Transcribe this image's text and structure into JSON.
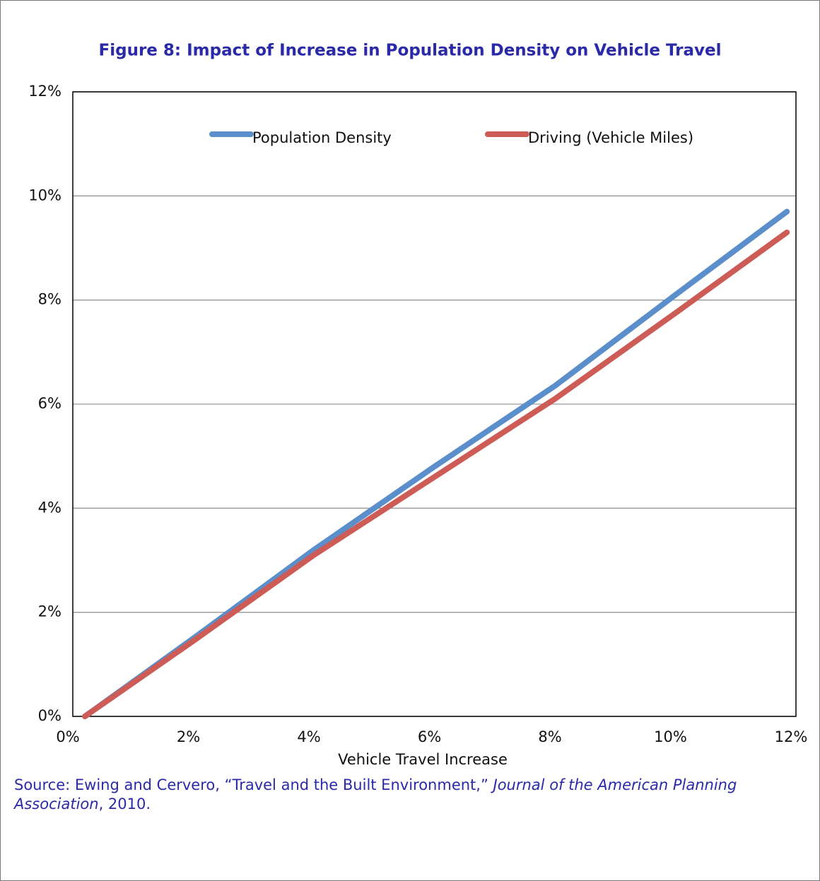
{
  "chart_data": {
    "type": "line",
    "title": "Figure 8: Impact of Increase in Population Density on Vehicle Travel",
    "x_label": "Vehicle Travel Increase",
    "x": [
      0.2,
      2,
      4,
      6,
      8,
      10,
      11.85
    ],
    "series": [
      {
        "name": "Population Density",
        "color": "#5b8fcc",
        "values": [
          0,
          1.5,
          3.2,
          4.8,
          6.35,
          8.1,
          9.7
        ]
      },
      {
        "name": "Driving (Vehicle Miles)",
        "color": "#cc5c55",
        "values": [
          0,
          1.45,
          3.1,
          4.6,
          6.1,
          7.75,
          9.3
        ]
      }
    ],
    "xlim": [
      0,
      12
    ],
    "ylim": [
      0,
      12
    ],
    "xticks": [
      {
        "value": 0,
        "label": "0%"
      },
      {
        "value": 2,
        "label": "2%"
      },
      {
        "value": 4,
        "label": "4%"
      },
      {
        "value": 6,
        "label": "6%"
      },
      {
        "value": 8,
        "label": "8%"
      },
      {
        "value": 10,
        "label": "10%"
      },
      {
        "value": 12,
        "label": "12%"
      }
    ],
    "yticks": [
      {
        "value": 0,
        "label": "0%"
      },
      {
        "value": 2,
        "label": "2%"
      },
      {
        "value": 4,
        "label": "4%"
      },
      {
        "value": 6,
        "label": "6%"
      },
      {
        "value": 8,
        "label": "8%"
      },
      {
        "value": 10,
        "label": "10%"
      },
      {
        "value": 12,
        "label": "12%"
      }
    ],
    "grid": true,
    "legend": "top",
    "source": {
      "prefix": "Source: Ewing and Cervero, “Travel and the Built Environment,” ",
      "journal": "Journal of the American Planning Association",
      "suffix": ", 2010."
    }
  }
}
